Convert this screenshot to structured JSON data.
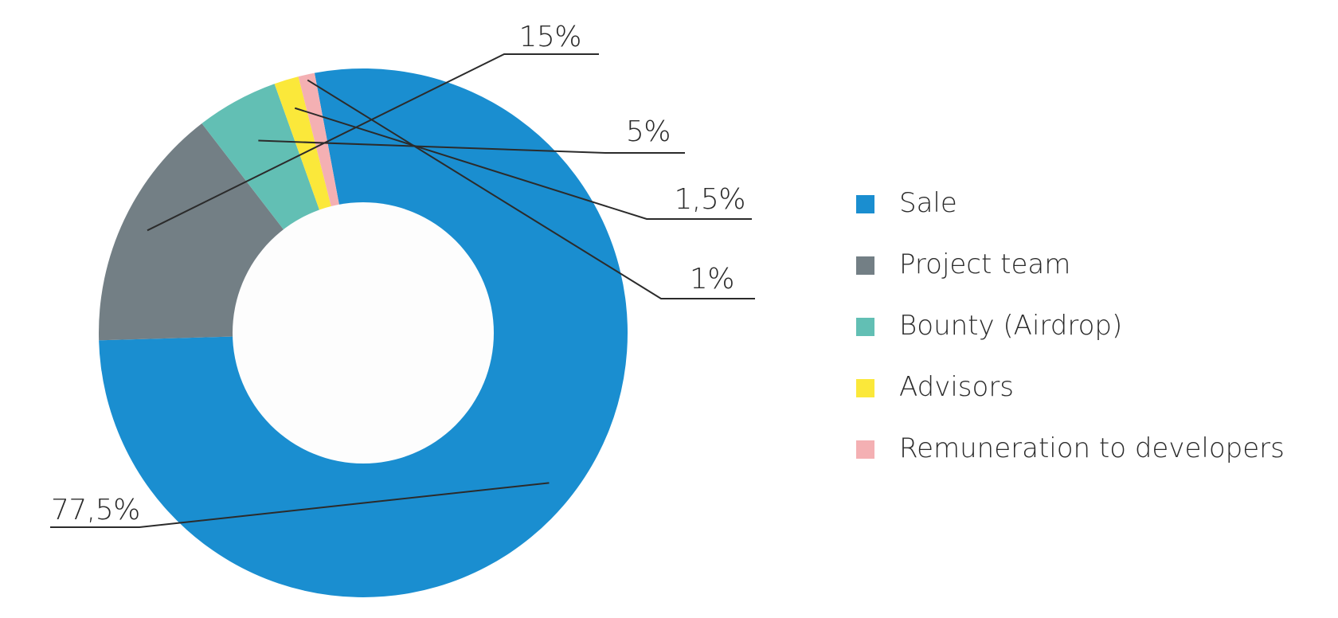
{
  "chart_data": {
    "type": "pie",
    "variant": "donut",
    "title": "",
    "slices": [
      {
        "label": "Sale",
        "value": 77.5,
        "display": "77,5%",
        "color": "#1a8ed0"
      },
      {
        "label": "Project team",
        "value": 15,
        "display": "15%",
        "color": "#737f85"
      },
      {
        "label": "Bounty (Airdrop)",
        "value": 5,
        "display": "5%",
        "color": "#62bfb4"
      },
      {
        "label": "Advisors",
        "value": 1.5,
        "display": "1,5%",
        "color": "#fbe83a"
      },
      {
        "label": "Remuneration to developers",
        "value": 1,
        "display": "1%",
        "color": "#f4b0b3"
      }
    ],
    "legend_position": "right"
  }
}
